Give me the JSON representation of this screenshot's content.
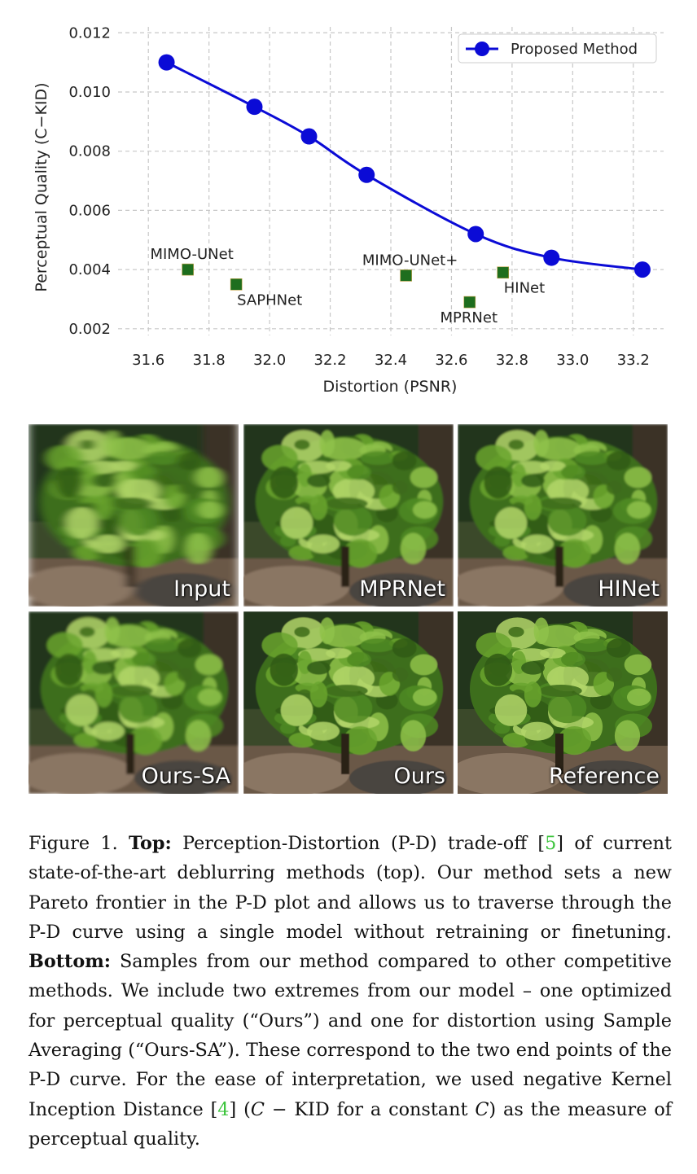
{
  "chart_data": {
    "type": "scatter",
    "xlabel": "Distortion (PSNR)",
    "ylabel": "Perceptual Quality (C−KID)",
    "xlim": [
      31.5,
      33.3
    ],
    "ylim": [
      0.0015,
      0.0122
    ],
    "xticks": [
      31.6,
      31.8,
      32.0,
      32.2,
      32.4,
      32.6,
      32.8,
      33.0,
      33.2
    ],
    "xtick_labels": [
      "31.6",
      "31.8",
      "32.0",
      "32.2",
      "32.4",
      "32.6",
      "32.8",
      "33.0",
      "33.2"
    ],
    "yticks": [
      0.002,
      0.004,
      0.006,
      0.008,
      0.01,
      0.012
    ],
    "ytick_labels": [
      "0.002",
      "0.004",
      "0.006",
      "0.008",
      "0.010",
      "0.012"
    ],
    "grid": true,
    "legend_position": "top-right",
    "series": [
      {
        "name": "Proposed Method",
        "kind": "line",
        "color": "#0b0bd6",
        "x": [
          31.66,
          31.95,
          32.13,
          32.32,
          32.68,
          32.93,
          33.23
        ],
        "y": [
          0.011,
          0.0095,
          0.0085,
          0.0072,
          0.0052,
          0.0044,
          0.004
        ]
      }
    ],
    "points": [
      {
        "label": "MIMO-UNet",
        "x": 31.73,
        "y": 0.004,
        "label_pos": "above-left"
      },
      {
        "label": "SAPHNet",
        "x": 31.89,
        "y": 0.0035,
        "label_pos": "below-right"
      },
      {
        "label": "MIMO-UNet+",
        "x": 32.45,
        "y": 0.0038,
        "label_pos": "above-left"
      },
      {
        "label": "MPRNet",
        "x": 32.66,
        "y": 0.0029,
        "label_pos": "below"
      },
      {
        "label": "HINet",
        "x": 32.77,
        "y": 0.0039,
        "label_pos": "below-right"
      }
    ],
    "point_color": "#1e6e1e"
  },
  "tiles": [
    {
      "label": "Input",
      "blur": 5.5
    },
    {
      "label": "MPRNet",
      "blur": 1.4
    },
    {
      "label": "HINet",
      "blur": 1.2
    },
    {
      "label": "Ours-SA",
      "blur": 1.6
    },
    {
      "label": "Ours",
      "blur": 0.4
    },
    {
      "label": "Reference",
      "blur": 0.2
    }
  ],
  "caption": {
    "fig": "Figure 1. ",
    "top_label": "Top:",
    "p1": " Perception-Distortion (P-D) trade-off [",
    "ref1": "5",
    "p2": "] of current state-of-the-art deblurring methods (top). Our method sets a new Pareto frontier in the P-D plot and allows us to traverse through the P-D curve using a single model without retraining or finetuning. ",
    "bottom_label": "Bottom:",
    "p3": " Samples from our method compared to other competitive methods. We include two extremes from our model – one optimized for perceptual quality (“Ours”) and one for distortion using Sample Averaging (“Ours-SA”). These correspond to the two end points of the P-D curve. For the ease of interpretation, we used negative Kernel Inception Distance [",
    "ref2": "4",
    "p4": "] (",
    "math1": "C",
    "p5": " − KID for a constant ",
    "math2": "C",
    "p6": ") as the measure of perceptual quality."
  }
}
